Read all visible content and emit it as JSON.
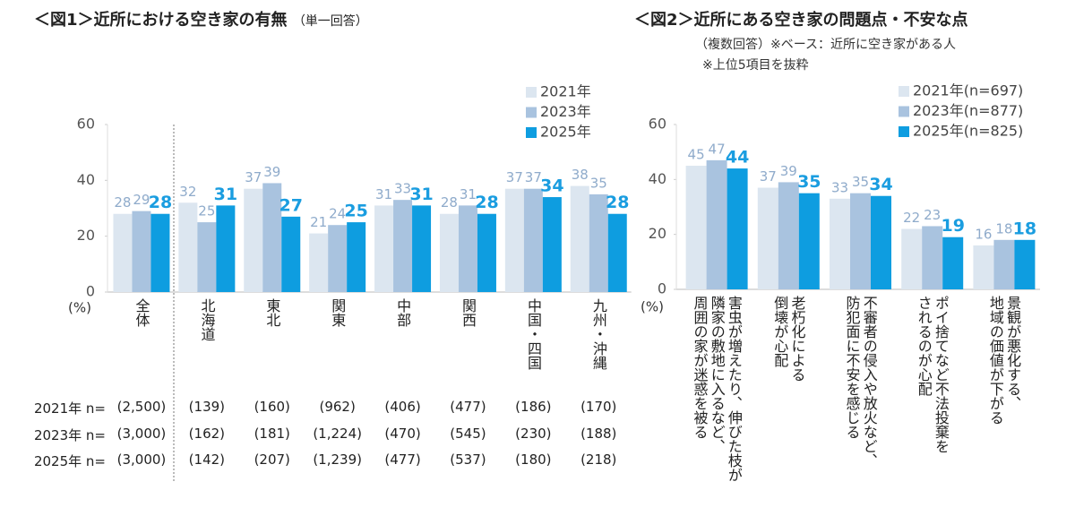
{
  "chart_data": [
    {
      "type": "bar",
      "title": "＜図1＞近所における空き家の有無",
      "subtitle": "（単一回答）",
      "y_unit": "(%)",
      "categories": [
        "全体",
        "北海道",
        "東北",
        "関東",
        "中部",
        "関西",
        "中国・四国",
        "九州・沖縄"
      ],
      "series": [
        {
          "name": "2021年",
          "color": "#dce6f0",
          "values": [
            28,
            32,
            37,
            21,
            31,
            28,
            37,
            38
          ]
        },
        {
          "name": "2023年",
          "color": "#a9c3df",
          "values": [
            29,
            25,
            39,
            24,
            33,
            31,
            37,
            35
          ]
        },
        {
          "name": "2025年",
          "color": "#0e9de0",
          "values": [
            28,
            31,
            27,
            25,
            31,
            28,
            34,
            28
          ]
        }
      ],
      "ylim": [
        0,
        60
      ],
      "yticks": [
        0,
        20,
        40,
        60
      ],
      "n_table": [
        {
          "label": "2021年 n=",
          "values": [
            "(2,500)",
            "(139)",
            "(160)",
            "(962)",
            "(406)",
            "(477)",
            "(186)",
            "(170)"
          ]
        },
        {
          "label": "2023年 n=",
          "values": [
            "(3,000)",
            "(162)",
            "(181)",
            "(1,224)",
            "(470)",
            "(545)",
            "(230)",
            "(188)"
          ]
        },
        {
          "label": "2025年 n=",
          "values": [
            "(3,000)",
            "(142)",
            "(207)",
            "(1,239)",
            "(477)",
            "(537)",
            "(180)",
            "(218)"
          ]
        }
      ]
    },
    {
      "type": "bar",
      "title": "＜図2＞近所にある空き家の問題点・不安な点",
      "notes": [
        "（複数回答）※ベース：近所に空き家がある人",
        "※上位5項目を抜粋"
      ],
      "y_unit": "(%)",
      "categories": [
        "害虫が増えたり、伸びた枝が\n隣家の敷地に入るなど、\n周囲の家が迷惑を被る",
        "老朽化による\n倒壊が心配",
        "不審者の侵入や放火など、\n防犯面に不安を感じる",
        "ポイ捨てなど不法投棄を\nされるのが心配",
        "景観が悪化する、\n地域の価値が下がる"
      ],
      "series": [
        {
          "name": "2021年(n=697)",
          "color": "#dce6f0",
          "values": [
            45,
            37,
            33,
            22,
            16
          ]
        },
        {
          "name": "2023年(n=877)",
          "color": "#a9c3df",
          "values": [
            47,
            39,
            35,
            23,
            18
          ]
        },
        {
          "name": "2025年(n=825)",
          "color": "#0e9de0",
          "values": [
            44,
            35,
            34,
            19,
            18
          ]
        }
      ],
      "ylim": [
        0,
        60
      ],
      "yticks": [
        0,
        20,
        40,
        60
      ]
    }
  ]
}
